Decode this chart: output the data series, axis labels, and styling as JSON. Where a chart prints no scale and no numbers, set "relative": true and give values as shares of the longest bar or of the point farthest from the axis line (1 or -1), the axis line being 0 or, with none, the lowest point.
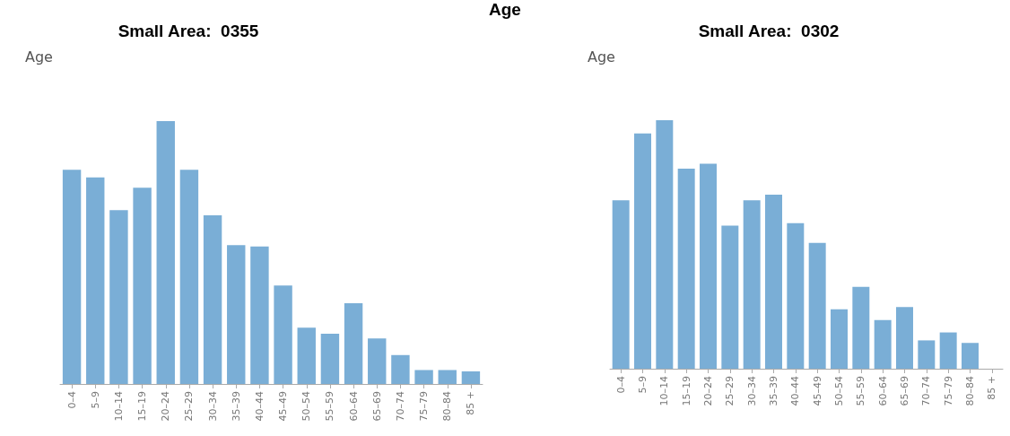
{
  "chart_data": [
    {
      "type": "bar",
      "title": "Small Area:  0355",
      "ylabel": "Age",
      "annotations": [
        "Age"
      ],
      "relative": true,
      "color": "#7aaed6",
      "categories": [
        "0–4",
        "5–9",
        "10–14",
        "15–19",
        "20–24",
        "25–29",
        "30–34",
        "35–39",
        "40–44",
        "45–49",
        "50–54",
        "55–59",
        "60–64",
        "65–69",
        "70–74",
        "75–79",
        "80–84",
        "85 +"
      ],
      "values": [
        0.815,
        0.786,
        0.661,
        0.747,
        1,
        0.815,
        0.642,
        0.528,
        0.523,
        0.375,
        0.214,
        0.191,
        0.307,
        0.173,
        0.11,
        0.053,
        0.053,
        0.048
      ]
    },
    {
      "type": "bar",
      "title": "Small Area:  0302",
      "ylabel": "Age",
      "relative": true,
      "color": "#7aaed6",
      "categories": [
        "0–4",
        "5–9",
        "10–14",
        "15–19",
        "20–24",
        "25–29",
        "30–34",
        "35–39",
        "40–44",
        "45–49",
        "50–54",
        "55–59",
        "60–64",
        "65–69",
        "70–74",
        "75–79",
        "80–84",
        "85 +"
      ],
      "values": [
        0.678,
        0.947,
        1,
        0.805,
        0.825,
        0.576,
        0.678,
        0.7,
        0.586,
        0.506,
        0.239,
        0.329,
        0.196,
        0.248,
        0.114,
        0.146,
        0.104,
        0
      ]
    }
  ]
}
